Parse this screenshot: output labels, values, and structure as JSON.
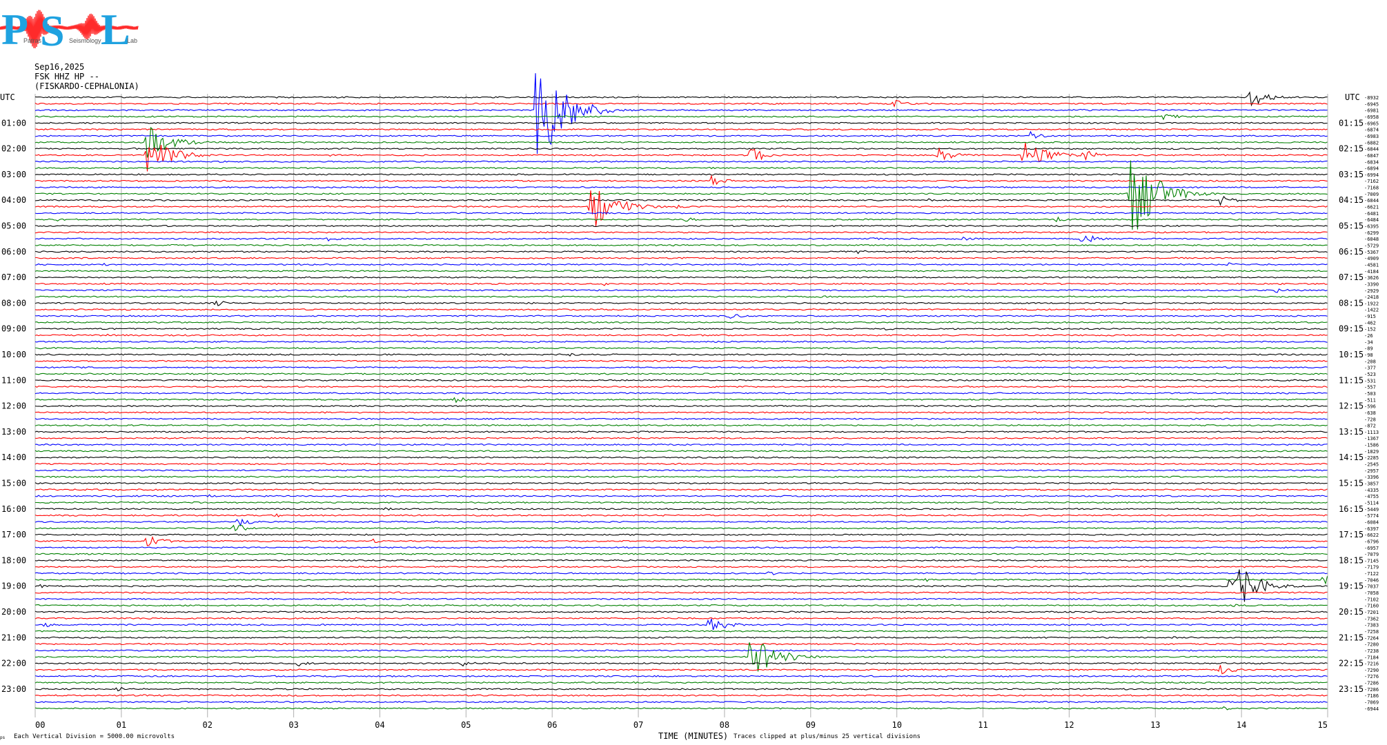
{
  "logo": {
    "letters": [
      "P",
      "S",
      "L"
    ],
    "sub": [
      "Patras",
      "Seismology",
      "Lab"
    ],
    "colors": {
      "letters": "#1fa2e0",
      "trace": "#ff2a2a"
    }
  },
  "header": {
    "date": "Sep16,2025",
    "station": "FSK HHZ HP --",
    "location": "(FISKARDO-CEPHALONIA)"
  },
  "footer": {
    "logo_mark": "ps",
    "scale_note": "Each Vertical Division = 5000.00 microvolts",
    "clip_note": "Traces clipped at plus/minus 25 vertical divisions"
  },
  "chart_data": {
    "type": "line",
    "xlabel": "TIME (MINUTES)",
    "x_ticks": [
      "00",
      "01",
      "02",
      "03",
      "04",
      "05",
      "06",
      "07",
      "08",
      "09",
      "10",
      "11",
      "12",
      "13",
      "14",
      "15"
    ],
    "xlim": [
      0,
      15
    ],
    "trace_colors": [
      "#000000",
      "#ff0000",
      "#0000ff",
      "#008000"
    ],
    "left_axis_title": "UTC",
    "right_axis_title": "UTC",
    "left_labels": [
      "01:00",
      "02:00",
      "03:00",
      "04:00",
      "05:00",
      "06:00",
      "07:00",
      "08:00",
      "09:00",
      "10:00",
      "11:00",
      "12:00",
      "13:00",
      "14:00",
      "15:00",
      "16:00",
      "17:00",
      "18:00",
      "19:00",
      "20:00",
      "21:00",
      "22:00",
      "23:00"
    ],
    "right_labels": [
      "01:15",
      "02:15",
      "03:15",
      "04:15",
      "05:15",
      "06:15",
      "07:15",
      "08:15",
      "09:15",
      "10:15",
      "11:15",
      "12:15",
      "13:15",
      "14:15",
      "15:15",
      "16:15",
      "17:15",
      "18:15",
      "19:15",
      "20:15",
      "21:15",
      "22:15",
      "23:15"
    ],
    "trace_offsets": [
      -8932,
      -6945,
      -6981,
      -6958,
      -6965,
      -6874,
      -6983,
      -6882,
      -6844,
      -6847,
      -6834,
      -6894,
      -6994,
      -7162,
      -7168,
      -7009,
      -6844,
      -6621,
      -6481,
      -6484,
      -6395,
      -6299,
      -6048,
      -5729,
      -5367,
      -4909,
      -4581,
      -4184,
      -3626,
      -3390,
      -2929,
      -2418,
      -1922,
      -1422,
      -915,
      -462,
      -152,
      -26,
      -34,
      -89,
      -98,
      -208,
      -377,
      -523,
      -531,
      -557,
      -503,
      -511,
      -596,
      -638,
      -728,
      -872,
      -1113,
      -1367,
      -1586,
      -1829,
      -2285,
      -2545,
      -2957,
      -3396,
      -3857,
      -4335,
      -4755,
      -5114,
      -5449,
      -5774,
      -6084,
      -6397,
      -6622,
      -6796,
      -6957,
      -7079,
      -7145,
      -7179,
      -7122,
      -7046,
      -7037,
      -7058,
      -7102,
      -7160,
      -7201,
      -7362,
      -7383,
      -7258,
      -7264,
      -7280,
      -7238,
      -7184,
      -7216,
      -7290,
      -7276,
      -7286,
      -7286,
      -7186,
      -7069,
      -6944
    ],
    "events": [
      {
        "trace": 0,
        "minute": 14.1,
        "amp": 1.6
      },
      {
        "trace": 1,
        "minute": 9.97,
        "amp": 0.6
      },
      {
        "trace": 2,
        "minute": 5.82,
        "amp": 11.0
      },
      {
        "trace": 2,
        "minute": 12.15,
        "amp": 0.3
      },
      {
        "trace": 3,
        "minute": 8.75,
        "amp": 0.3
      },
      {
        "trace": 3,
        "minute": 13.1,
        "amp": 0.7
      },
      {
        "trace": 6,
        "minute": 11.55,
        "amp": 0.7
      },
      {
        "trace": 7,
        "minute": 1.3,
        "amp": 2.8
      },
      {
        "trace": 8,
        "minute": 1.05,
        "amp": 0.3
      },
      {
        "trace": 8,
        "minute": 6.8,
        "amp": 0.2
      },
      {
        "trace": 9,
        "minute": 1.3,
        "amp": 3.0
      },
      {
        "trace": 9,
        "minute": 8.3,
        "amp": 1.3
      },
      {
        "trace": 9,
        "minute": 10.45,
        "amp": 1.3
      },
      {
        "trace": 9,
        "minute": 11.47,
        "amp": 2.5
      },
      {
        "trace": 9,
        "minute": 12.15,
        "amp": 1.0
      },
      {
        "trace": 9,
        "minute": 3.4,
        "amp": 0.2
      },
      {
        "trace": 9,
        "minute": 4.9,
        "amp": 0.2
      },
      {
        "trace": 11,
        "minute": 6.25,
        "amp": 0.2
      },
      {
        "trace": 13,
        "minute": 7.85,
        "amp": 0.8
      },
      {
        "trace": 15,
        "minute": 12.72,
        "amp": 7.5
      },
      {
        "trace": 16,
        "minute": 10.35,
        "amp": 0.3
      },
      {
        "trace": 16,
        "minute": 10.85,
        "amp": 0.3
      },
      {
        "trace": 16,
        "minute": 13.75,
        "amp": 0.8
      },
      {
        "trace": 17,
        "minute": 6.45,
        "amp": 3.8
      },
      {
        "trace": 17,
        "minute": 7.45,
        "amp": 0.3
      },
      {
        "trace": 19,
        "minute": 0.25,
        "amp": 0.3
      },
      {
        "trace": 19,
        "minute": 7.55,
        "amp": 0.4
      },
      {
        "trace": 19,
        "minute": 11.85,
        "amp": 0.4
      },
      {
        "trace": 21,
        "minute": 0.5,
        "amp": 0.2
      },
      {
        "trace": 22,
        "minute": 3.4,
        "amp": 0.4
      },
      {
        "trace": 22,
        "minute": 9.7,
        "amp": 0.3
      },
      {
        "trace": 22,
        "minute": 10.75,
        "amp": 0.4
      },
      {
        "trace": 22,
        "minute": 12.15,
        "amp": 1.0
      },
      {
        "trace": 24,
        "minute": 9.55,
        "amp": 0.4
      },
      {
        "trace": 26,
        "minute": 0.8,
        "amp": 0.3
      },
      {
        "trace": 26,
        "minute": 13.85,
        "amp": 0.3
      },
      {
        "trace": 28,
        "minute": 9.5,
        "amp": 0.2
      },
      {
        "trace": 29,
        "minute": 0.8,
        "amp": 0.2
      },
      {
        "trace": 29,
        "minute": 6.6,
        "amp": 0.3
      },
      {
        "trace": 30,
        "minute": 14.4,
        "amp": 0.4
      },
      {
        "trace": 31,
        "minute": 9.1,
        "amp": 0.3
      },
      {
        "trace": 32,
        "minute": 2.1,
        "amp": 0.5
      },
      {
        "trace": 34,
        "minute": 8.05,
        "amp": 0.5
      },
      {
        "trace": 34,
        "minute": 4.3,
        "amp": 0.2
      },
      {
        "trace": 36,
        "minute": 9.85,
        "amp": 0.3
      },
      {
        "trace": 37,
        "minute": 0.85,
        "amp": 0.3
      },
      {
        "trace": 40,
        "minute": 5.4,
        "amp": 0.2
      },
      {
        "trace": 40,
        "minute": 6.2,
        "amp": 0.3
      },
      {
        "trace": 47,
        "minute": 4.85,
        "amp": 0.6
      },
      {
        "trace": 54,
        "minute": 11.9,
        "amp": 0.3
      },
      {
        "trace": 57,
        "minute": 9.55,
        "amp": 0.2
      },
      {
        "trace": 59,
        "minute": 10.95,
        "amp": 0.2
      },
      {
        "trace": 62,
        "minute": 2.0,
        "amp": 0.3
      },
      {
        "trace": 64,
        "minute": 4.05,
        "amp": 0.4
      },
      {
        "trace": 65,
        "minute": 2.8,
        "amp": 0.3
      },
      {
        "trace": 66,
        "minute": 2.35,
        "amp": 0.8
      },
      {
        "trace": 67,
        "minute": 2.3,
        "amp": 0.9
      },
      {
        "trace": 69,
        "minute": 1.3,
        "amp": 1.0
      },
      {
        "trace": 69,
        "minute": 3.9,
        "amp": 0.4
      },
      {
        "trace": 74,
        "minute": 8.5,
        "amp": 0.4
      },
      {
        "trace": 75,
        "minute": 10.35,
        "amp": 0.5
      },
      {
        "trace": 75,
        "minute": 14.95,
        "amp": 0.8
      },
      {
        "trace": 76,
        "minute": 0.05,
        "amp": 0.3
      },
      {
        "trace": 76,
        "minute": 13.88,
        "amp": 4.5
      },
      {
        "trace": 79,
        "minute": 4.3,
        "amp": 0.2
      },
      {
        "trace": 79,
        "minute": 13.9,
        "amp": 0.3
      },
      {
        "trace": 82,
        "minute": 0.1,
        "amp": 0.4
      },
      {
        "trace": 82,
        "minute": 7.82,
        "amp": 1.4
      },
      {
        "trace": 84,
        "minute": 13.2,
        "amp": 0.2
      },
      {
        "trace": 87,
        "minute": 8.3,
        "amp": 3.8
      },
      {
        "trace": 88,
        "minute": 3.05,
        "amp": 0.6
      },
      {
        "trace": 88,
        "minute": 4.95,
        "amp": 0.5
      },
      {
        "trace": 89,
        "minute": 13.75,
        "amp": 0.8
      },
      {
        "trace": 90,
        "minute": 3.5,
        "amp": 0.2
      },
      {
        "trace": 91,
        "minute": 6.95,
        "amp": 0.2
      },
      {
        "trace": 92,
        "minute": 0.95,
        "amp": 0.4
      },
      {
        "trace": 93,
        "minute": 1.25,
        "amp": 0.2
      },
      {
        "trace": 95,
        "minute": 13.8,
        "amp": 0.3
      }
    ]
  }
}
